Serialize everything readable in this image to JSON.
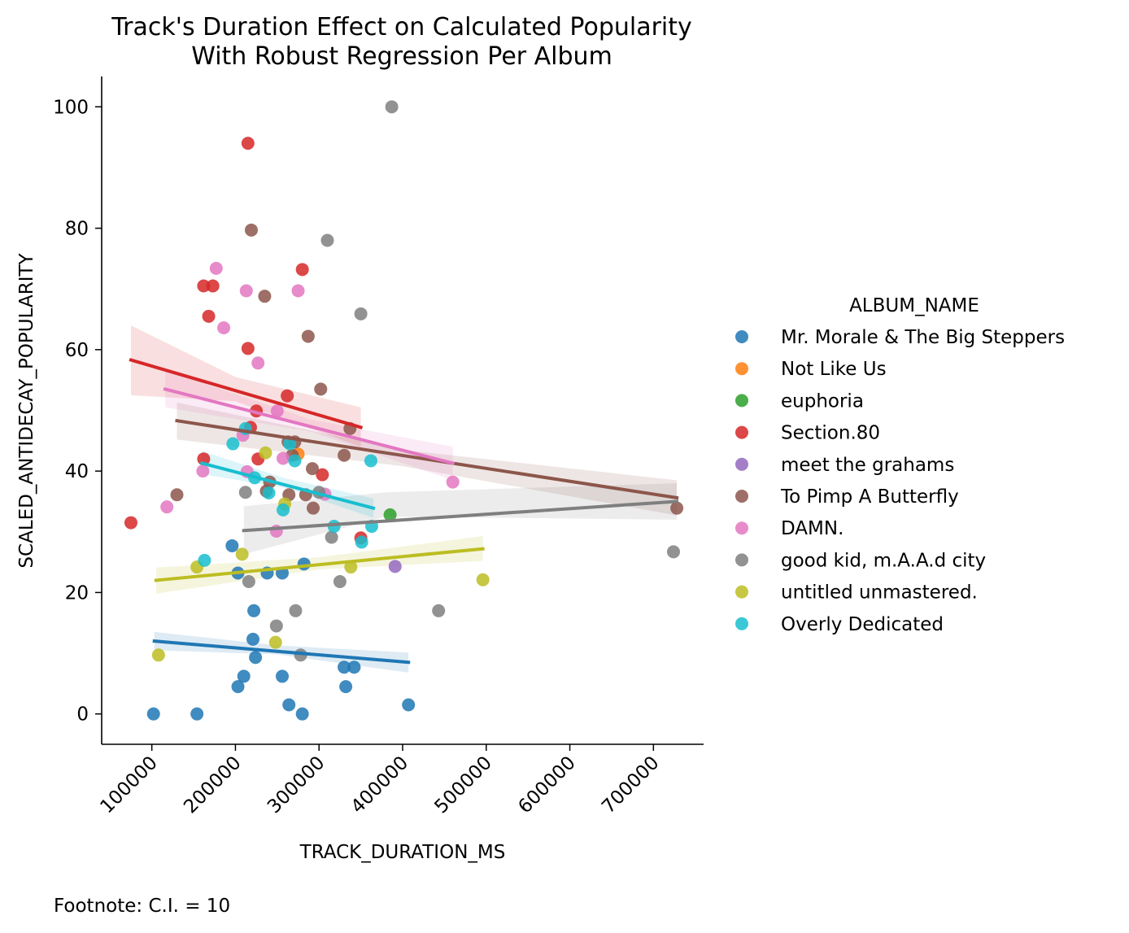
{
  "chart_data": {
    "type": "scatter",
    "title": "Track's Duration Effect on Calculated Popularity",
    "subtitle": "With Robust Regression Per Album",
    "xlabel": "TRACK_DURATION_MS",
    "ylabel": "SCALED_ANTIDECAY_POPULARITY",
    "xlim": [
      40000,
      760000
    ],
    "ylim": [
      -5,
      105
    ],
    "x_ticks": [
      100000,
      200000,
      300000,
      400000,
      500000,
      600000,
      700000
    ],
    "y_ticks": [
      0,
      20,
      40,
      60,
      80,
      100
    ],
    "legend_title": "ALBUM_NAME",
    "legend_position": "right",
    "footnote": "Footnote: C.I. = 10",
    "series": [
      {
        "name": "Mr. Morale & The Big Steppers",
        "color": "#1f77b4",
        "points": [
          [
            102000,
            0
          ],
          [
            154000,
            0
          ],
          [
            280000,
            0
          ],
          [
            264000,
            1.5
          ],
          [
            407000,
            1.5
          ],
          [
            203000,
            4.5
          ],
          [
            332000,
            4.5
          ],
          [
            210000,
            6.2
          ],
          [
            256000,
            6.2
          ],
          [
            330000,
            7.7
          ],
          [
            342000,
            7.7
          ],
          [
            224000,
            9.3
          ],
          [
            221000,
            12.3
          ],
          [
            222000,
            17
          ],
          [
            196000,
            27.7
          ],
          [
            203000,
            23.2
          ],
          [
            238000,
            23.2
          ],
          [
            256000,
            23.2
          ],
          [
            282000,
            24.7
          ]
        ],
        "fit": [
          [
            103000,
            12
          ],
          [
            407000,
            8.5
          ]
        ],
        "band": [
          [
            103000,
            10.5,
            13.5
          ],
          [
            250000,
            9.8,
            11.3
          ],
          [
            407000,
            6.8,
            10.1
          ]
        ]
      },
      {
        "name": "Not Like Us",
        "color": "#ff7f0e",
        "points": [
          [
            275000,
            42.8
          ]
        ],
        "fit": null,
        "band": null
      },
      {
        "name": "euphoria",
        "color": "#2ca02c",
        "points": [
          [
            385000,
            32.8
          ]
        ],
        "fit": null,
        "band": null
      },
      {
        "name": "Section.80",
        "color": "#d62728",
        "points": [
          [
            75000,
            31.5
          ],
          [
            162000,
            70.5
          ],
          [
            173000,
            70.5
          ],
          [
            168000,
            65.5
          ],
          [
            215000,
            94
          ],
          [
            280000,
            73.2
          ],
          [
            215000,
            60.2
          ],
          [
            262000,
            52.4
          ],
          [
            225000,
            49.9
          ],
          [
            218000,
            47.2
          ],
          [
            162000,
            42
          ],
          [
            227000,
            42
          ],
          [
            304000,
            39.4
          ],
          [
            350000,
            29
          ]
        ],
        "fit": [
          [
            75000,
            58.3
          ],
          [
            350000,
            47.2
          ]
        ],
        "band": [
          [
            75000,
            52.5,
            64
          ],
          [
            200000,
            51.5,
            55.5
          ],
          [
            350000,
            44,
            50.5
          ]
        ]
      },
      {
        "name": "meet the grahams",
        "color": "#9467bd",
        "points": [
          [
            391000,
            24.3
          ]
        ],
        "fit": null,
        "band": null
      },
      {
        "name": "To Pimp A Butterfly",
        "color": "#8c564b",
        "points": [
          [
            219000,
            79.7
          ],
          [
            235000,
            68.8
          ],
          [
            287000,
            62.2
          ],
          [
            302000,
            53.5
          ],
          [
            337000,
            47
          ],
          [
            271000,
            44.8
          ],
          [
            263000,
            44.8
          ],
          [
            330000,
            42.6
          ],
          [
            268000,
            42.6
          ],
          [
            292000,
            40.4
          ],
          [
            241000,
            38.2
          ],
          [
            130000,
            36.1
          ],
          [
            237000,
            36.7
          ],
          [
            264000,
            36.1
          ],
          [
            284000,
            36.1
          ],
          [
            293000,
            33.9
          ],
          [
            728000,
            33.9
          ]
        ],
        "fit": [
          [
            130000,
            48.3
          ],
          [
            728000,
            35.6
          ]
        ],
        "band": [
          [
            130000,
            45.2,
            51.3
          ],
          [
            400000,
            40.8,
            43.5
          ],
          [
            728000,
            32.7,
            38.5
          ]
        ]
      },
      {
        "name": "DAMN.",
        "color": "#e377c2",
        "points": [
          [
            177000,
            73.4
          ],
          [
            213000,
            69.7
          ],
          [
            275000,
            69.7
          ],
          [
            186000,
            63.6
          ],
          [
            227000,
            57.8
          ],
          [
            250000,
            49.9
          ],
          [
            209000,
            45.9
          ],
          [
            214000,
            39.9
          ],
          [
            257000,
            42.1
          ],
          [
            161000,
            40
          ],
          [
            307000,
            36.2
          ],
          [
            118000,
            34.1
          ],
          [
            249000,
            30.1
          ],
          [
            460000,
            38.2
          ]
        ],
        "fit": [
          [
            116000,
            53.5
          ],
          [
            460000,
            41.3
          ]
        ],
        "band": [
          [
            116000,
            50.5,
            56.6
          ],
          [
            290000,
            46.5,
            48.5
          ],
          [
            460000,
            38.5,
            44
          ]
        ]
      },
      {
        "name": "good kid, m.A.A.d city",
        "color": "#7f7f7f",
        "points": [
          [
            387000,
            100
          ],
          [
            310000,
            78
          ],
          [
            350000,
            65.9
          ],
          [
            212000,
            36.5
          ],
          [
            300000,
            36.5
          ],
          [
            315000,
            29.1
          ],
          [
            216000,
            21.8
          ],
          [
            325000,
            21.8
          ],
          [
            272000,
            17
          ],
          [
            443000,
            17
          ],
          [
            249000,
            14.5
          ],
          [
            278000,
            9.7
          ],
          [
            724000,
            26.7
          ]
        ],
        "fit": [
          [
            210000,
            30.2
          ],
          [
            728000,
            35
          ]
        ],
        "band": [
          [
            210000,
            26.3,
            34.2
          ],
          [
            380000,
            32.5,
            36.5
          ],
          [
            728000,
            32,
            38
          ]
        ]
      },
      {
        "name": "untitled unmastered.",
        "color": "#bcbd22",
        "points": [
          [
            108000,
            9.7
          ],
          [
            154000,
            24.2
          ],
          [
            208000,
            26.3
          ],
          [
            236000,
            43
          ],
          [
            259000,
            34.6
          ],
          [
            338000,
            24.2
          ],
          [
            248000,
            11.8
          ],
          [
            496000,
            22.1
          ]
        ],
        "fit": [
          [
            105000,
            22
          ],
          [
            496000,
            27.2
          ]
        ],
        "band": [
          [
            105000,
            19.8,
            24.1
          ],
          [
            300000,
            23.8,
            25.8
          ],
          [
            496000,
            25.2,
            29.3
          ]
        ]
      },
      {
        "name": "Overly Dedicated",
        "color": "#17becf",
        "points": [
          [
            212000,
            47
          ],
          [
            197000,
            44.5
          ],
          [
            265000,
            44.5
          ],
          [
            271000,
            41.7
          ],
          [
            362000,
            41.7
          ],
          [
            223000,
            38.9
          ],
          [
            240000,
            36.4
          ],
          [
            257000,
            33.6
          ],
          [
            318000,
            30.9
          ],
          [
            363000,
            30.9
          ],
          [
            351000,
            28.3
          ],
          [
            163000,
            25.3
          ]
        ],
        "fit": [
          [
            160000,
            41.3
          ],
          [
            365000,
            33.9
          ]
        ],
        "band": [
          [
            160000,
            39.5,
            43.3
          ],
          [
            260000,
            37.2,
            38.8
          ],
          [
            365000,
            32.3,
            35.5
          ]
        ]
      }
    ]
  }
}
